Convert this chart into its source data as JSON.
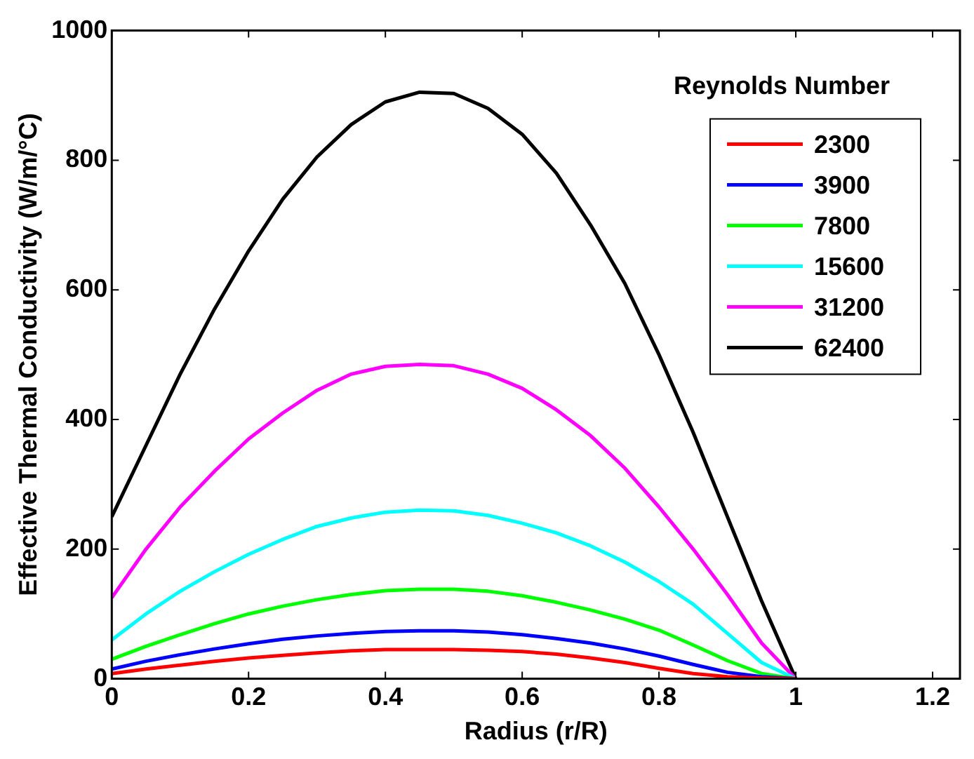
{
  "chart_data": {
    "type": "line",
    "xlabel": "Radius (r/R)",
    "ylabel": "Effective Thermal Conductivity (W/m/°C)",
    "legend_title": "Reynolds Number",
    "legend": "top right",
    "grid": false,
    "marker": "none",
    "line_style": "solid",
    "x": [
      0,
      0.05,
      0.1,
      0.15,
      0.2,
      0.25,
      0.3,
      0.35,
      0.4,
      0.45,
      0.5,
      0.55,
      0.6,
      0.65,
      0.7,
      0.75,
      0.8,
      0.85,
      0.9,
      0.95,
      1
    ],
    "xlim": [
      0,
      1.24
    ],
    "xticks": [
      0,
      0.2,
      0.4,
      0.6,
      0.8,
      1,
      1.2
    ],
    "ylim": [
      0,
      1000
    ],
    "yticks": [
      0,
      200,
      400,
      600,
      800,
      1000
    ],
    "series": [
      {
        "name": "2300",
        "color": "#ff0000",
        "values": [
          8,
          15,
          21,
          27,
          32,
          36,
          40,
          43,
          45,
          45,
          45,
          44,
          42,
          38,
          32,
          25,
          16,
          8,
          3,
          1,
          0
        ]
      },
      {
        "name": "3900",
        "color": "#0000ff",
        "values": [
          15,
          27,
          37,
          46,
          54,
          61,
          66,
          70,
          73,
          74,
          74,
          72,
          68,
          62,
          55,
          46,
          35,
          22,
          10,
          3,
          0
        ]
      },
      {
        "name": "7800",
        "color": "#00ff00",
        "values": [
          30,
          50,
          68,
          85,
          100,
          112,
          122,
          130,
          136,
          138,
          138,
          135,
          128,
          118,
          106,
          92,
          75,
          52,
          28,
          8,
          0
        ]
      },
      {
        "name": "15600",
        "color": "#00ffff",
        "values": [
          60,
          100,
          135,
          165,
          192,
          215,
          235,
          248,
          257,
          260,
          259,
          252,
          240,
          225,
          205,
          180,
          150,
          115,
          70,
          25,
          0
        ]
      },
      {
        "name": "31200",
        "color": "#ff00ff",
        "values": [
          125,
          200,
          265,
          320,
          370,
          410,
          445,
          470,
          482,
          485,
          483,
          470,
          448,
          415,
          375,
          325,
          265,
          200,
          130,
          55,
          0
        ]
      },
      {
        "name": "62400",
        "color": "#000000",
        "values": [
          250,
          360,
          470,
          570,
          660,
          740,
          805,
          855,
          890,
          905,
          903,
          880,
          840,
          780,
          700,
          610,
          500,
          380,
          250,
          120,
          0
        ]
      }
    ]
  }
}
